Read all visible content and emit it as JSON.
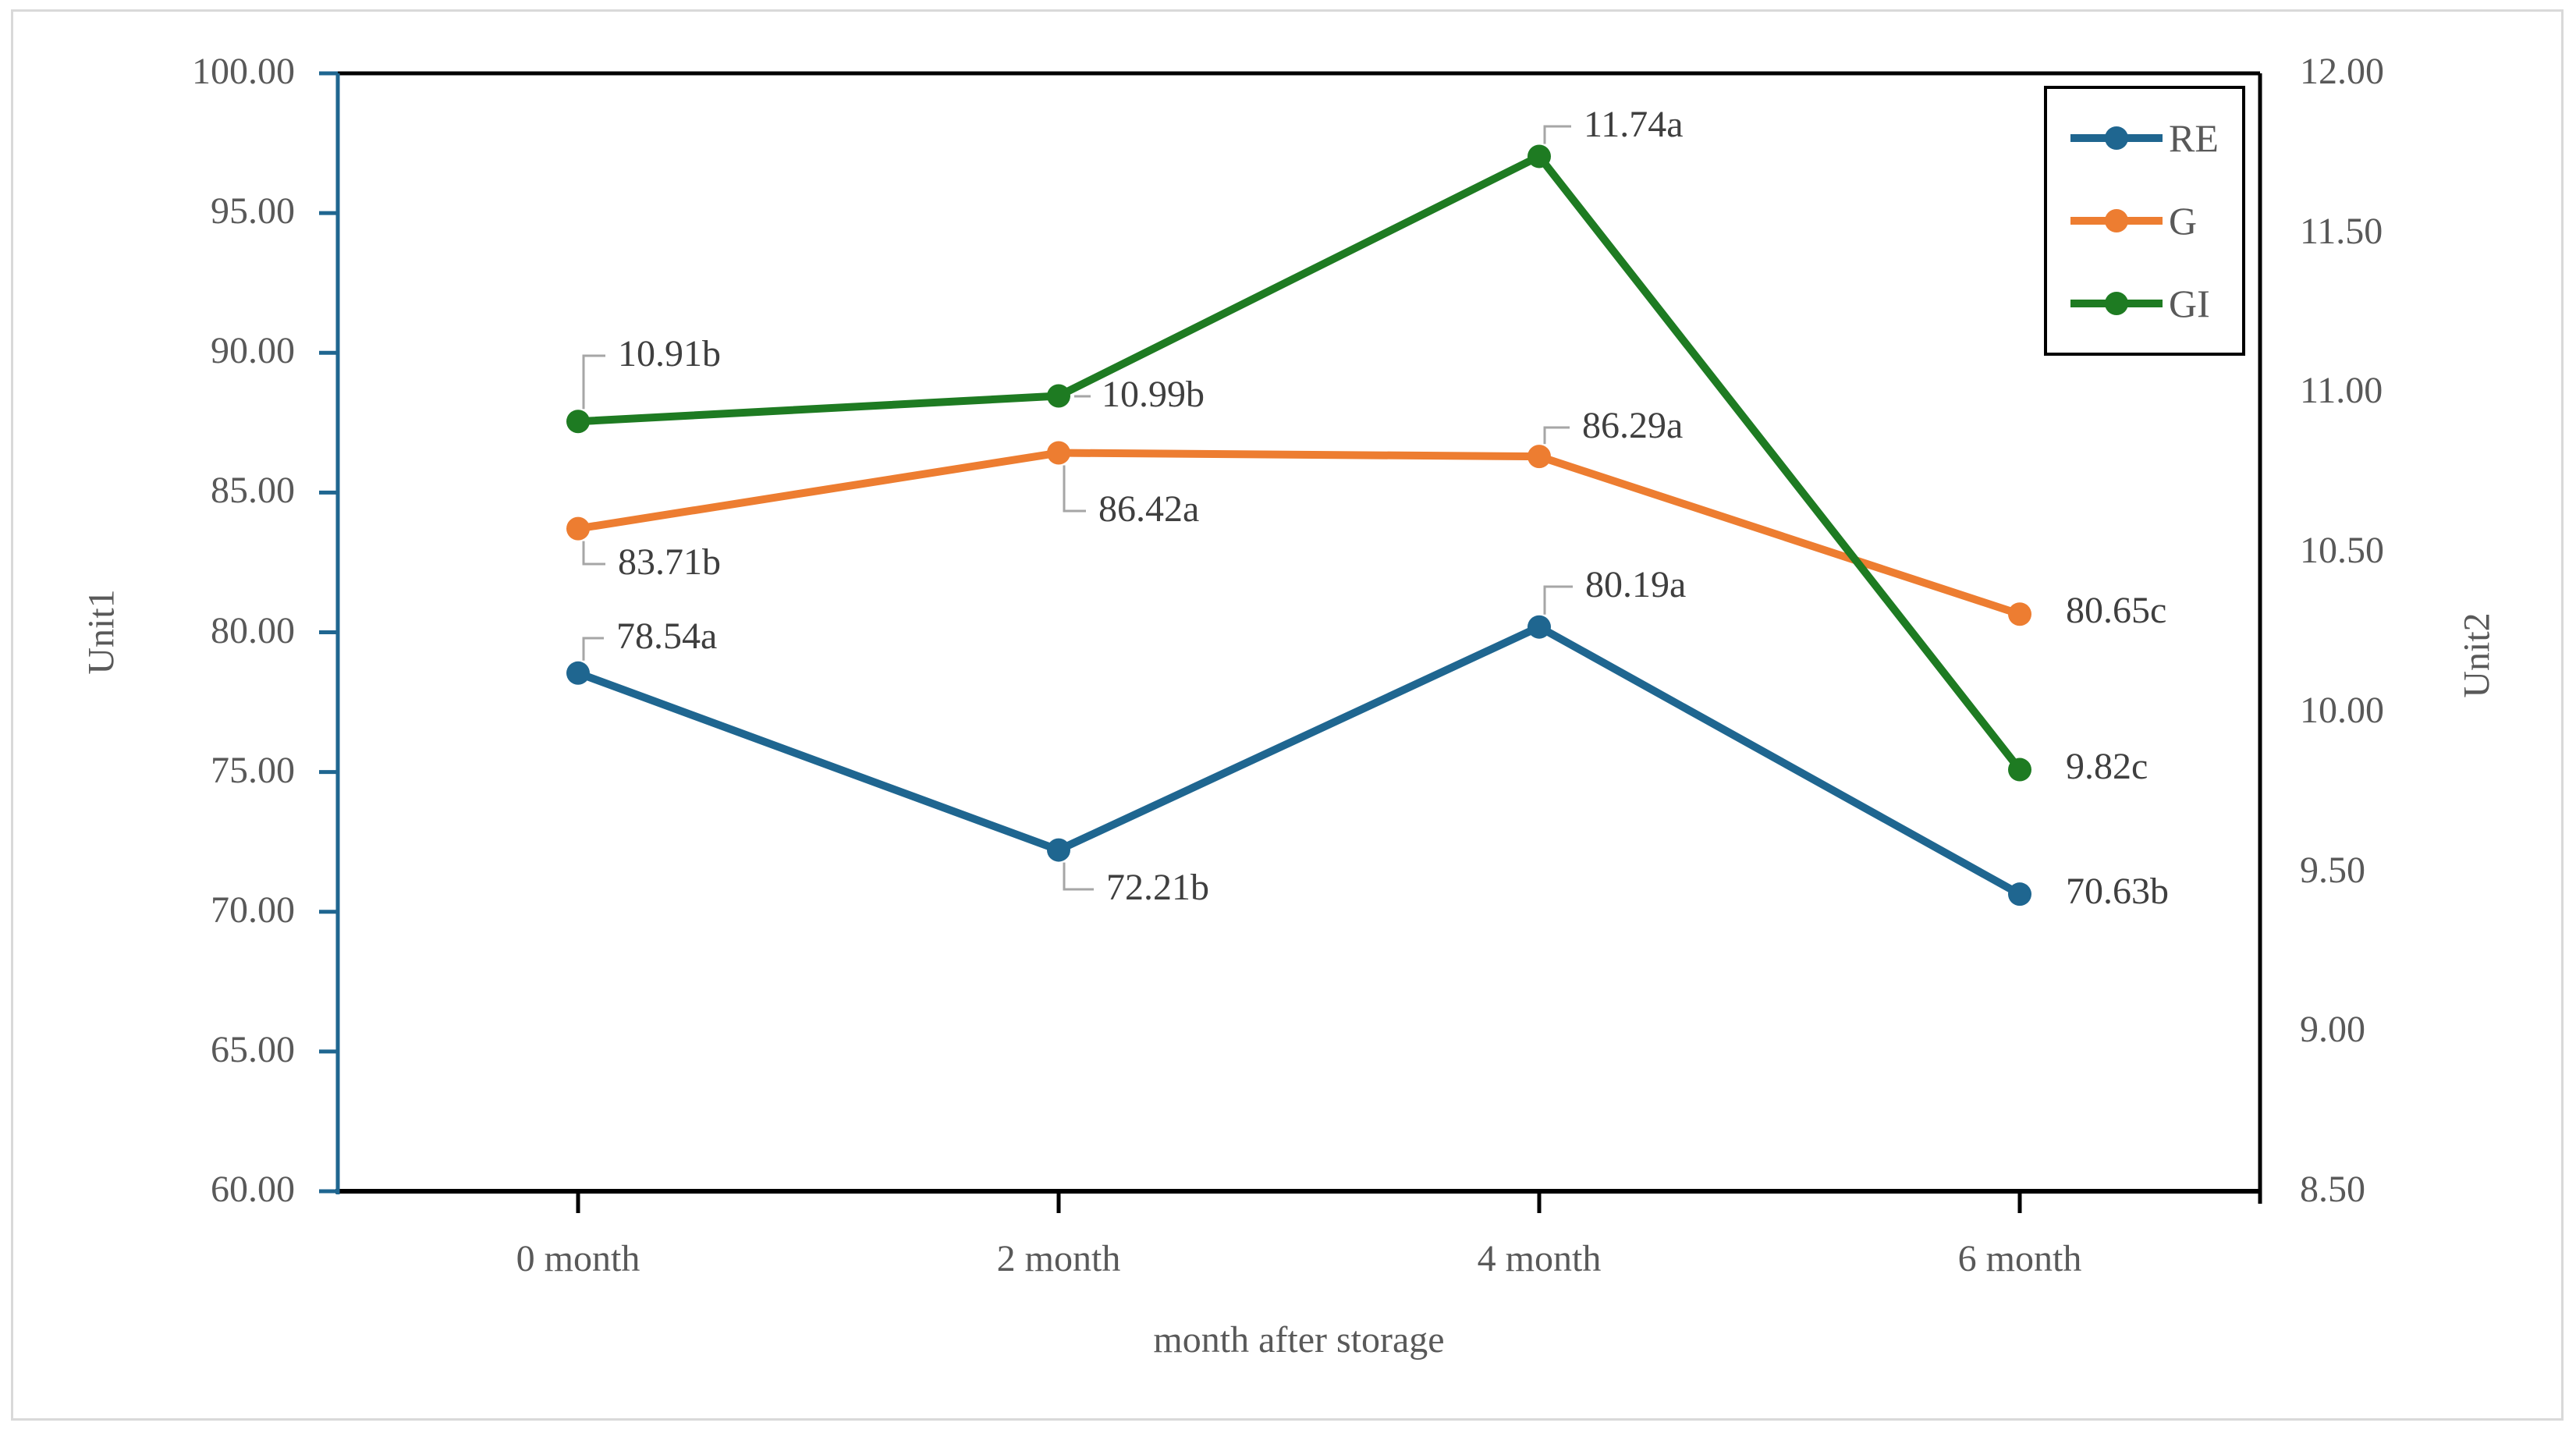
{
  "chart_data": {
    "type": "line",
    "x_axis_title": "month after storage",
    "categories": [
      "0 month",
      "2 month",
      "4 month",
      "6 month"
    ],
    "left_axis": {
      "title": "Unit1",
      "min": 60,
      "max": 100,
      "step": 5,
      "tick_labels": [
        "100.00",
        "95.00",
        "90.00",
        "85.00",
        "80.00",
        "75.00",
        "70.00",
        "65.00",
        "60.00"
      ]
    },
    "right_axis": {
      "title": "Unit2",
      "min": 8.5,
      "max": 12,
      "step": 0.5,
      "tick_labels": [
        "12.00",
        "11.50",
        "11.00",
        "10.50",
        "10.00",
        "9.50",
        "9.00",
        "8.50"
      ]
    },
    "series": [
      {
        "name": "RE",
        "axis": "left",
        "color": "#1f6690",
        "values": [
          78.54,
          72.21,
          80.19,
          70.63
        ],
        "point_labels": [
          "78.54a",
          "72.21b",
          "80.19a",
          "70.63b"
        ]
      },
      {
        "name": "G",
        "axis": "left",
        "color": "#ed7d31",
        "values": [
          83.71,
          86.42,
          86.29,
          80.65
        ],
        "point_labels": [
          "83.71b",
          "86.42a",
          "86.29a",
          "80.65c"
        ]
      },
      {
        "name": "GI",
        "axis": "right",
        "color": "#1e7b22",
        "values": [
          10.91,
          10.99,
          11.74,
          9.82
        ],
        "point_labels": [
          "10.91b",
          "10.99b",
          "11.74a",
          "9.82c"
        ]
      }
    ],
    "legend": {
      "position": "top-right",
      "entries": [
        "RE",
        "G",
        "GI"
      ]
    },
    "grid": "off",
    "colors": {
      "plot_border": "#000000",
      "left_axis_line": "#1f6690",
      "leader_line": "#a6a6a6",
      "axis_text": "#595959",
      "data_label_text": "#3f3f3f",
      "figure_border": "#d9d9d9"
    }
  }
}
